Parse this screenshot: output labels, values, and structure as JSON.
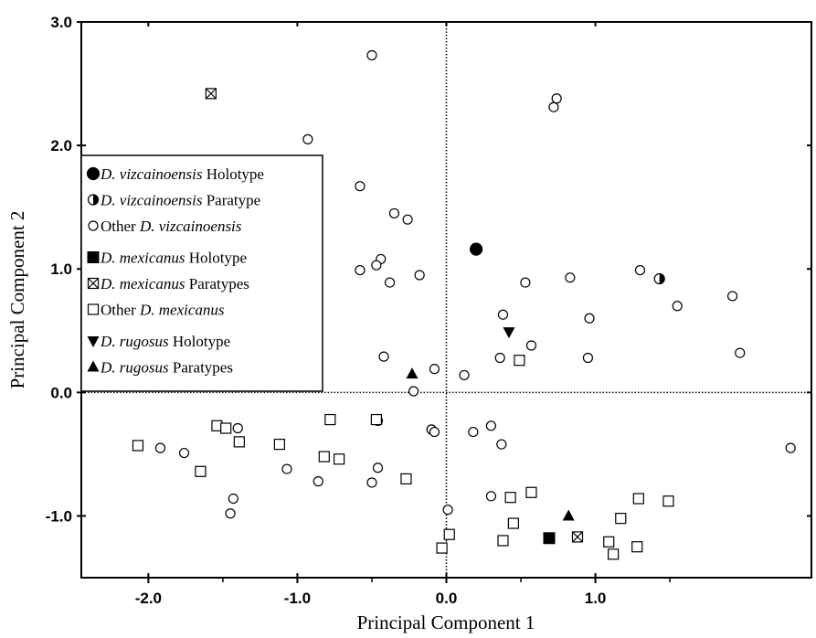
{
  "chart_data": {
    "type": "scatter",
    "xlabel": "Principal Component 1",
    "ylabel": "Principal Component 2",
    "xlim": [
      -2.45,
      2.45
    ],
    "ylim": [
      -1.5,
      3.0
    ],
    "x_ticks": [
      -2.0,
      -1.0,
      0.0,
      1.0
    ],
    "x_tick_labels": [
      "-2.0",
      "-1.0",
      "0.0",
      "1.0"
    ],
    "y_ticks": [
      -1.0,
      0.0,
      1.0,
      2.0,
      3.0
    ],
    "y_tick_labels": [
      "-1.0",
      "0.0",
      "1.0",
      "2.0",
      "3.0"
    ],
    "reference_lines": {
      "x": 0.0,
      "y": 0.0,
      "style": "dotted"
    },
    "legend": {
      "placement": "upper-left",
      "groups": [
        [
          {
            "series": "vizc_holo",
            "italic": "D. vizcainoensis",
            "plain": "Holotype"
          },
          {
            "series": "vizc_para",
            "italic": "D. vizcainoensis",
            "plain": "Paratype"
          },
          {
            "series": "vizc_other",
            "prefix": "Other",
            "italic": "D. vizcainoensis",
            "plain": ""
          }
        ],
        [
          {
            "series": "mex_holo",
            "italic": "D. mexicanus",
            "plain": "Holotype"
          },
          {
            "series": "mex_para",
            "italic": "D. mexicanus",
            "plain": "Paratypes"
          },
          {
            "series": "mex_other",
            "prefix": "Other",
            "italic": "D. mexicanus",
            "plain": ""
          }
        ],
        [
          {
            "series": "rug_holo",
            "italic": "D. rugosus",
            "plain": "Holotype"
          },
          {
            "series": "rug_para",
            "italic": "D. rugosus",
            "plain": "Paratypes"
          }
        ]
      ]
    },
    "series": [
      {
        "id": "vizc_holo",
        "name": "D. vizcainoensis Holotype",
        "marker": "circle-filled",
        "points": [
          [
            0.2,
            1.16
          ]
        ]
      },
      {
        "id": "vizc_para",
        "name": "D. vizcainoensis Paratype",
        "marker": "circle-half",
        "points": [
          [
            1.43,
            0.92
          ]
        ]
      },
      {
        "id": "vizc_other",
        "name": "Other D. vizcainoensis",
        "marker": "circle-open",
        "points": [
          [
            -0.5,
            2.73
          ],
          [
            0.74,
            2.38
          ],
          [
            0.72,
            2.31
          ],
          [
            -0.93,
            2.05
          ],
          [
            -0.58,
            1.67
          ],
          [
            -0.35,
            1.45
          ],
          [
            -0.26,
            1.4
          ],
          [
            -0.44,
            1.08
          ],
          [
            -0.47,
            1.03
          ],
          [
            -0.58,
            0.99
          ],
          [
            -0.18,
            0.95
          ],
          [
            -0.38,
            0.89
          ],
          [
            0.53,
            0.89
          ],
          [
            0.83,
            0.93
          ],
          [
            1.3,
            0.99
          ],
          [
            1.55,
            0.7
          ],
          [
            1.92,
            0.78
          ],
          [
            1.97,
            0.32
          ],
          [
            0.38,
            0.63
          ],
          [
            0.96,
            0.6
          ],
          [
            0.57,
            0.38
          ],
          [
            0.36,
            0.28
          ],
          [
            0.95,
            0.28
          ],
          [
            -0.42,
            0.29
          ],
          [
            -0.08,
            0.19
          ],
          [
            0.12,
            0.14
          ],
          [
            -0.22,
            0.01
          ],
          [
            -0.46,
            -0.23
          ],
          [
            -0.1,
            -0.3
          ],
          [
            -0.08,
            -0.32
          ],
          [
            0.18,
            -0.32
          ],
          [
            0.3,
            -0.27
          ],
          [
            0.37,
            -0.42
          ],
          [
            -1.4,
            -0.29
          ],
          [
            -1.92,
            -0.45
          ],
          [
            -1.76,
            -0.49
          ],
          [
            -1.43,
            -0.86
          ],
          [
            -1.45,
            -0.98
          ],
          [
            -1.07,
            -0.62
          ],
          [
            -0.86,
            -0.72
          ],
          [
            -0.46,
            -0.61
          ],
          [
            -0.5,
            -0.73
          ],
          [
            0.01,
            -0.95
          ],
          [
            0.3,
            -0.84
          ],
          [
            2.31,
            -0.45
          ]
        ]
      },
      {
        "id": "mex_holo",
        "name": "D. mexicanus Holotype",
        "marker": "square-filled",
        "points": [
          [
            0.69,
            -1.18
          ]
        ]
      },
      {
        "id": "mex_para",
        "name": "D. mexicanus Paratypes",
        "marker": "square-x",
        "points": [
          [
            -1.58,
            2.42
          ],
          [
            0.88,
            -1.17
          ]
        ]
      },
      {
        "id": "mex_other",
        "name": "Other D. mexicanus",
        "marker": "square-open",
        "points": [
          [
            -2.07,
            -0.43
          ],
          [
            -1.65,
            -0.64
          ],
          [
            -1.54,
            -0.27
          ],
          [
            -1.48,
            -0.29
          ],
          [
            -1.39,
            -0.4
          ],
          [
            -1.12,
            -0.42
          ],
          [
            -0.78,
            -0.22
          ],
          [
            -0.82,
            -0.52
          ],
          [
            -0.72,
            -0.54
          ],
          [
            -0.47,
            -0.22
          ],
          [
            -0.27,
            -0.7
          ],
          [
            -0.03,
            -1.26
          ],
          [
            0.02,
            -1.15
          ],
          [
            0.43,
            -0.85
          ],
          [
            0.45,
            -1.06
          ],
          [
            0.38,
            -1.2
          ],
          [
            0.57,
            -0.81
          ],
          [
            0.49,
            0.26
          ],
          [
            1.09,
            -1.21
          ],
          [
            1.12,
            -1.31
          ],
          [
            1.17,
            -1.02
          ],
          [
            1.28,
            -1.25
          ],
          [
            1.29,
            -0.86
          ],
          [
            1.49,
            -0.88
          ]
        ]
      },
      {
        "id": "rug_holo",
        "name": "D. rugosus Holotype",
        "marker": "triangle-down",
        "points": [
          [
            0.42,
            0.49
          ]
        ]
      },
      {
        "id": "rug_para",
        "name": "D. rugosus Paratypes",
        "marker": "triangle-up",
        "points": [
          [
            -0.23,
            0.15
          ],
          [
            0.82,
            -1.0
          ]
        ]
      }
    ]
  }
}
